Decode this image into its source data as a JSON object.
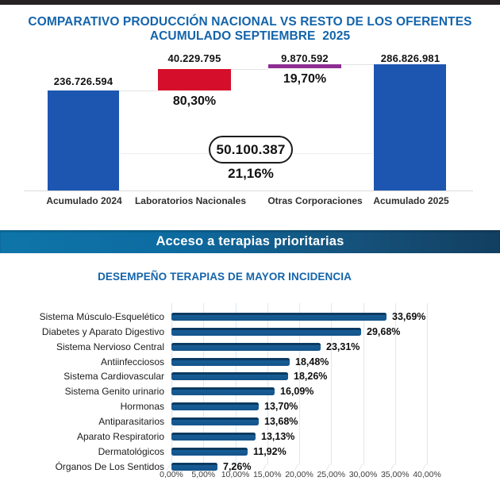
{
  "header": {
    "title_line1": "COMPARATIVO PRODUCCIÓN NACIONAL VS RESTO DE LOS OFERENTES",
    "title_line2": "ACUMULADO SEPTIEMBRE  2025",
    "title_color": "#1464ab"
  },
  "waterfall": {
    "bars": [
      {
        "category": "Acumulado 2024",
        "value_label": "236.726.594",
        "color": "#1d56b0"
      },
      {
        "category": "Laboratorios Nacionales",
        "value_label": "40.229.795",
        "pct_label": "80,30%",
        "color": "#d50f2b"
      },
      {
        "category": "Otras Corporaciones",
        "value_label": "9.870.592",
        "pct_label": "19,70%",
        "color": "#8e2d92"
      },
      {
        "category": "Acumulado 2025",
        "value_label": "286.826.981",
        "color": "#1d56b0"
      }
    ],
    "callout_value": "50.100.387",
    "callout_pct": "21,16%"
  },
  "banner": {
    "label": "Acceso a terapias prioritarias",
    "gradient_left": "#0f75a9",
    "gradient_right": "#123f61"
  },
  "bar_chart": {
    "title": "DESEMPEÑO TERAPIAS DE MAYOR INCIDENCIA",
    "bar_color": "#175e97",
    "rows": [
      {
        "label": "Sistema Músculo-Esquelético",
        "value_label": "33,69%",
        "value": 33.69
      },
      {
        "label": "Diabetes y Aparato Digestivo",
        "value_label": "29,68%",
        "value": 29.68
      },
      {
        "label": "Sistema Nervioso Central",
        "value_label": "23,31%",
        "value": 23.31
      },
      {
        "label": "Antiinfecciosos",
        "value_label": "18,48%",
        "value": 18.48
      },
      {
        "label": "Sistema Cardiovascular",
        "value_label": "18,26%",
        "value": 18.26
      },
      {
        "label": "Sistema Genito urinario",
        "value_label": "16,09%",
        "value": 16.09
      },
      {
        "label": "Hormonas",
        "value_label": "13,70%",
        "value": 13.7
      },
      {
        "label": "Antiparasitarios",
        "value_label": "13,68%",
        "value": 13.68
      },
      {
        "label": "Aparato Respiratorio",
        "value_label": "13,13%",
        "value": 13.13
      },
      {
        "label": "Dermatológicos",
        "value_label": "11,92%",
        "value": 11.92
      },
      {
        "label": "Órganos De Los Sentidos",
        "value_label": "7,26%",
        "value": 7.26
      }
    ],
    "x_ticks": [
      "0,00%",
      "5,00%",
      "10,00%",
      "15,00%",
      "20,00%",
      "25,00%",
      "30,00%",
      "35,00%",
      "40,00%"
    ]
  },
  "chart_data": [
    {
      "type": "bar",
      "subtype": "waterfall",
      "title": "COMPARATIVO PRODUCCIÓN NACIONAL VS RESTO DE LOS OFERENTES ACUMULADO SEPTIEMBRE 2025",
      "categories": [
        "Acumulado 2024",
        "Laboratorios Nacionales",
        "Otras Corporaciones",
        "Acumulado 2025"
      ],
      "values": [
        236726594,
        40229795,
        9870592,
        286826981
      ],
      "value_labels": [
        "236.726.594",
        "40.229.795",
        "9.870.592",
        "286.826.981"
      ],
      "pct_labels": [
        null,
        "80,30%",
        "19,70%",
        null
      ],
      "bar_colors": [
        "#1d56b0",
        "#d50f2b",
        "#8e2d92",
        "#1d56b0"
      ],
      "annotation": {
        "value_label": "50.100.387",
        "pct_label": "21,16%"
      },
      "legend": "none",
      "grid": false
    },
    {
      "type": "bar",
      "orientation": "horizontal",
      "title": "DESEMPEÑO TERAPIAS DE MAYOR INCIDENCIA",
      "categories": [
        "Sistema Músculo-Esquelético",
        "Diabetes y Aparato Digestivo",
        "Sistema Nervioso Central",
        "Antiinfecciosos",
        "Sistema Cardiovascular",
        "Sistema Genito urinario",
        "Hormonas",
        "Antiparasitarios",
        "Aparato Respiratorio",
        "Dermatológicos",
        "Órganos De Los Sentidos"
      ],
      "values": [
        33.69,
        29.68,
        23.31,
        18.48,
        18.26,
        16.09,
        13.7,
        13.68,
        13.13,
        11.92,
        7.26
      ],
      "data_labels": [
        "33,69%",
        "29,68%",
        "23,31%",
        "18,48%",
        "18,26%",
        "16,09%",
        "13,70%",
        "13,68%",
        "13,13%",
        "11,92%",
        "7,26%"
      ],
      "xlabel": "",
      "ylabel": "",
      "xlim": [
        0,
        40
      ],
      "x_tick_labels": [
        "0,00%",
        "5,00%",
        "10,00%",
        "15,00%",
        "20,00%",
        "25,00%",
        "30,00%",
        "35,00%",
        "40,00%"
      ],
      "grid": true,
      "legend": "none",
      "bar_color": "#175e97"
    }
  ]
}
